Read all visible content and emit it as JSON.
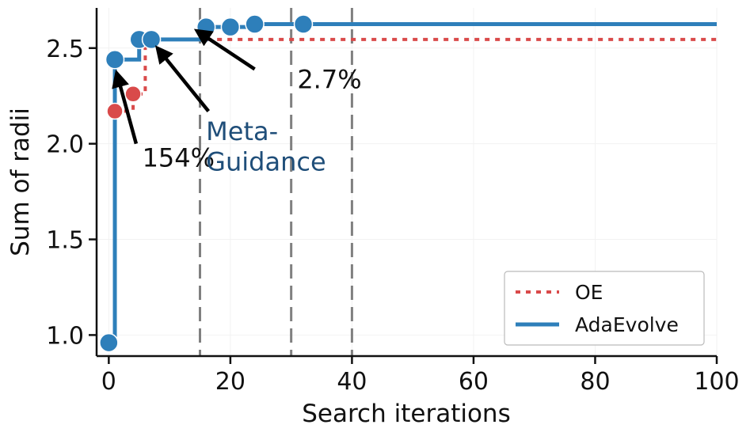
{
  "chart_data": {
    "type": "line",
    "title": "",
    "xlabel": "Search iterations",
    "ylabel": "Sum of radii",
    "xlim": [
      -2,
      100
    ],
    "ylim": [
      0.89,
      2.71
    ],
    "xticks": [
      0,
      20,
      40,
      60,
      80,
      100
    ],
    "yticks": [
      1.0,
      1.5,
      2.0,
      2.5
    ],
    "xtick_labels": [
      "0",
      "20",
      "40",
      "60",
      "80",
      "100"
    ],
    "ytick_labels": [
      "1.0",
      "1.5",
      "2.0",
      "2.5"
    ],
    "grid": false,
    "legend_position": "bottom-right",
    "vlines": [
      15,
      30,
      40
    ],
    "series": [
      {
        "name": "OE",
        "color": "#d94a4a",
        "style": "dotted",
        "step": true,
        "points": [
          [
            0,
            0.96
          ],
          [
            1,
            2.17
          ],
          [
            4,
            2.26
          ],
          [
            6,
            2.545
          ],
          [
            100,
            2.545
          ]
        ],
        "markers": [
          [
            1,
            2.17
          ],
          [
            4,
            2.26
          ]
        ]
      },
      {
        "name": "AdaEvolve",
        "color": "#2e7fba",
        "style": "solid",
        "step": true,
        "points": [
          [
            0,
            0.96
          ],
          [
            1,
            2.44
          ],
          [
            5,
            2.545
          ],
          [
            7,
            2.545
          ],
          [
            16,
            2.61
          ],
          [
            20,
            2.61
          ],
          [
            24,
            2.625
          ],
          [
            32,
            2.625
          ],
          [
            100,
            2.625
          ]
        ],
        "markers": [
          [
            0,
            0.96
          ],
          [
            1,
            2.44
          ],
          [
            5,
            2.545
          ],
          [
            7,
            2.545
          ],
          [
            16,
            2.61
          ],
          [
            20,
            2.61
          ],
          [
            24,
            2.625
          ],
          [
            32,
            2.625
          ]
        ]
      }
    ],
    "annotations": [
      {
        "text": "154%",
        "color": "#111111",
        "text_at": [
          5.5,
          1.88
        ],
        "arrow_from": [
          4.5,
          2.0
        ],
        "arrow_to": [
          1.3,
          2.37
        ]
      },
      {
        "text": "2.7%",
        "color": "#111111",
        "text_at": [
          31,
          2.29
        ],
        "arrow_from": [
          24,
          2.39
        ],
        "arrow_to": [
          14.5,
          2.59
        ]
      },
      {
        "text": "Meta-",
        "color": "#1f4e79",
        "text_at": [
          16,
          2.02
        ],
        "arrow_from": [
          16.4,
          2.17
        ],
        "arrow_to": [
          8,
          2.5
        ]
      },
      {
        "text": "Guidance",
        "color": "#1f4e79",
        "text_at": [
          16,
          1.86
        ]
      }
    ]
  }
}
